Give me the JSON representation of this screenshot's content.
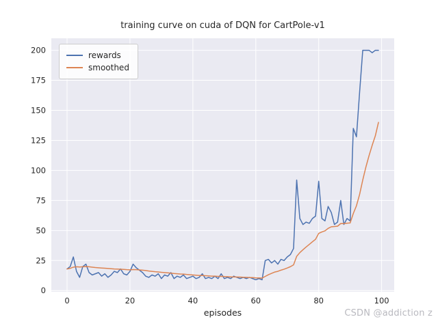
{
  "figure": {
    "title": "training curve on cuda of DQN for CartPole-v1",
    "watermark": "CSDN @addiction z"
  },
  "chart_data": {
    "type": "line",
    "title": "training curve on cuda of DQN for CartPole-v1",
    "xlabel": "episodes",
    "ylabel": "",
    "grid": true,
    "legend_position": "upper left",
    "xticks": [
      0,
      20,
      40,
      60,
      80,
      100
    ],
    "yticks": [
      0,
      25,
      50,
      75,
      100,
      125,
      150,
      175,
      200
    ],
    "xlim": [
      -5,
      104
    ],
    "ylim": [
      -1,
      210
    ],
    "colors": {
      "plot_bg": "#eaeaf2",
      "grid": "#ffffff",
      "tick": "#262626",
      "title": "#262626",
      "watermark": "#b9b9bf"
    },
    "x": [
      0,
      1,
      2,
      3,
      4,
      5,
      6,
      7,
      8,
      9,
      10,
      11,
      12,
      13,
      14,
      15,
      16,
      17,
      18,
      19,
      20,
      21,
      22,
      23,
      24,
      25,
      26,
      27,
      28,
      29,
      30,
      31,
      32,
      33,
      34,
      35,
      36,
      37,
      38,
      39,
      40,
      41,
      42,
      43,
      44,
      45,
      46,
      47,
      48,
      49,
      50,
      51,
      52,
      53,
      54,
      55,
      56,
      57,
      58,
      59,
      60,
      61,
      62,
      63,
      64,
      65,
      66,
      67,
      68,
      69,
      70,
      71,
      72,
      73,
      74,
      75,
      76,
      77,
      78,
      79,
      80,
      81,
      82,
      83,
      84,
      85,
      86,
      87,
      88,
      89,
      90,
      91,
      92,
      93,
      94,
      95,
      96,
      97,
      98,
      99
    ],
    "series": [
      {
        "name": "rewards",
        "color": "#4c72b0",
        "values": [
          18,
          20,
          28,
          16,
          11,
          20,
          22,
          15,
          13,
          14,
          15,
          12,
          14,
          11,
          13,
          16,
          15,
          18,
          14,
          13,
          16,
          22,
          19,
          17,
          15,
          12,
          11,
          13,
          12,
          14,
          10,
          13,
          12,
          15,
          10,
          12,
          11,
          13,
          10,
          11,
          12,
          10,
          11,
          14,
          10,
          11,
          10,
          12,
          10,
          14,
          10,
          11,
          10,
          12,
          11,
          10,
          11,
          10,
          11,
          10,
          9,
          10,
          9,
          25,
          26,
          23,
          25,
          22,
          26,
          25,
          28,
          30,
          35,
          92,
          60,
          55,
          57,
          56,
          60,
          62,
          91,
          60,
          58,
          70,
          65,
          55,
          57,
          75,
          55,
          60,
          58,
          135,
          128,
          165,
          200,
          200,
          200,
          198,
          200,
          200
        ]
      },
      {
        "name": "smoothed",
        "color": "#dd8452",
        "values": [
          18.0,
          18.5,
          19.5,
          19.8,
          19.6,
          19.8,
          20.0,
          19.8,
          19.5,
          19.2,
          19.0,
          18.8,
          18.6,
          18.4,
          18.2,
          18.0,
          17.9,
          17.8,
          17.6,
          17.4,
          17.3,
          17.5,
          17.4,
          17.2,
          17.0,
          16.7,
          16.3,
          16.0,
          15.7,
          15.5,
          15.2,
          15.0,
          14.8,
          14.5,
          14.2,
          14.0,
          13.8,
          13.7,
          13.4,
          13.2,
          13.0,
          12.8,
          12.6,
          12.6,
          12.4,
          12.2,
          12.0,
          12.0,
          11.8,
          11.9,
          11.7,
          11.6,
          11.4,
          11.4,
          11.3,
          11.2,
          11.1,
          11.0,
          10.9,
          10.8,
          10.6,
          10.5,
          10.4,
          11.8,
          13.2,
          14.3,
          15.4,
          16.0,
          17.0,
          17.8,
          18.8,
          19.9,
          21.4,
          28.5,
          31.6,
          34.0,
          36.3,
          38.4,
          40.6,
          42.7,
          47.6,
          48.8,
          49.7,
          51.8,
          53.1,
          53.3,
          53.6,
          55.8,
          55.7,
          56.1,
          56.3,
          64.2,
          70.6,
          80.0,
          92.0,
          102.8,
          112.3,
          120.9,
          128.8,
          140.0
        ]
      }
    ]
  }
}
